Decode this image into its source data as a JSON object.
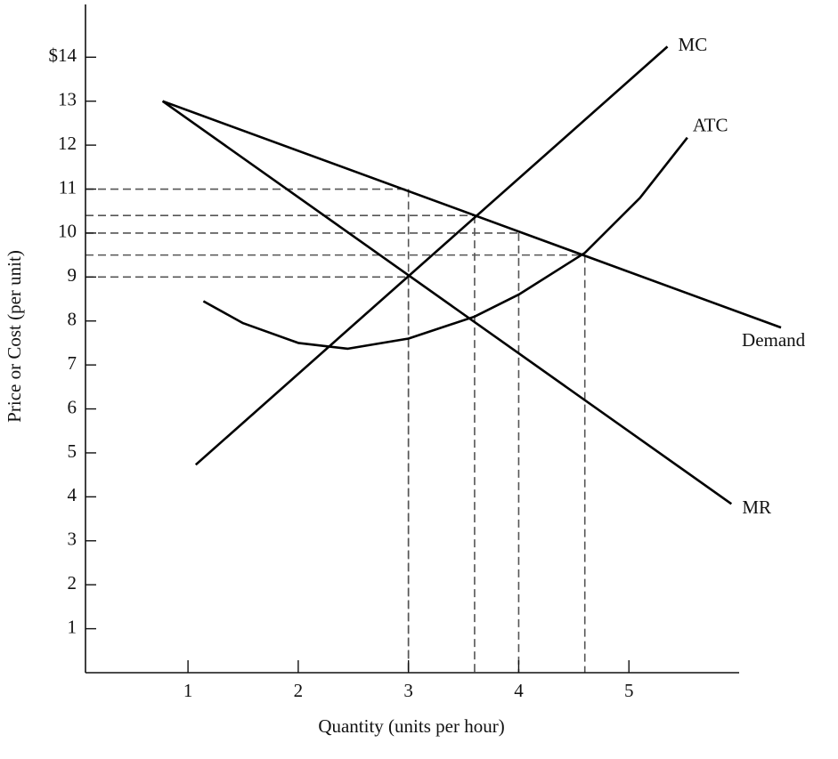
{
  "chart_data": {
    "type": "line",
    "x_label": "Quantity (units per hour)",
    "y_label": "Price or Cost (per unit)",
    "xlim": [
      0.07,
      6.0
    ],
    "ylim": [
      0,
      15.2
    ],
    "xticks": [
      1,
      2,
      3,
      4,
      5
    ],
    "yticks": [
      1,
      2,
      3,
      4,
      5,
      6,
      7,
      8,
      9,
      10,
      11,
      12,
      13,
      {
        "value": 14,
        "label": "$14"
      }
    ],
    "series": [
      {
        "name": "MC",
        "color": "#000000",
        "x": [
          1.07,
          5.35
        ],
        "values": [
          4.73,
          14.24
        ]
      },
      {
        "name": "ATC",
        "color": "#000000",
        "x": [
          1.14,
          1.5,
          2,
          2.45,
          3,
          3.6,
          4,
          4.6,
          5.1,
          5.53
        ],
        "values": [
          8.45,
          7.95,
          7.5,
          7.37,
          7.6,
          8.1,
          8.6,
          9.55,
          10.8,
          12.17
        ]
      },
      {
        "name": "Demand",
        "color": "#000000",
        "x": [
          0.77,
          6.38
        ],
        "values": [
          13,
          7.85
        ]
      },
      {
        "name": "MR",
        "color": "#000000",
        "x": [
          0.77,
          5.93
        ],
        "values": [
          13,
          3.84
        ]
      }
    ],
    "reference_points": {
      "color": "#555555",
      "x": [
        3,
        3,
        3.6,
        4,
        4.6
      ],
      "values": [
        11,
        9,
        10.4,
        10,
        9.5
      ]
    }
  }
}
